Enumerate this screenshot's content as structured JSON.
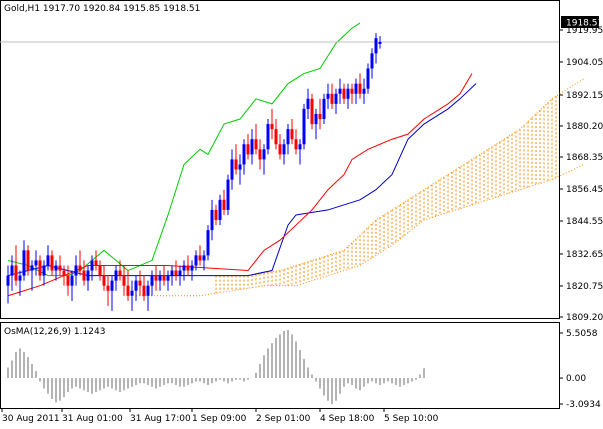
{
  "colors": {
    "background": "#ffffff",
    "frame": "#000000",
    "bull_candle": "#0000ff",
    "bear_candle": "#ff0000",
    "tenkan": "#ff0000",
    "kijun": "#0000cc",
    "chikou": "#00cc00",
    "kumo": "#ff8c00",
    "osma": "#b4b4b4",
    "bid_line": "#c0c0c0"
  },
  "main_panel": {
    "title": "Gold,H1  1917.70 1920.84 1915.85 1918.51",
    "current_price_label": "1918.51",
    "current_price": 1918.51,
    "price_ticks": [
      "1919.95",
      "1904.05",
      "1892.15",
      "1880.20",
      "1868.35",
      "1856.45",
      "1844.55",
      "1832.65",
      "1820.75",
      "1809.20"
    ]
  },
  "osma_panel": {
    "title": "OsMA(12,26,9) 1.1243",
    "ticks": [
      "5.5058",
      "0.00",
      "-3.0934"
    ]
  },
  "time_axis": {
    "labels": [
      "30 Aug 2011",
      "31 Aug 01:00",
      "31 Aug 17:00",
      "1 Sep 09:00",
      "2 Sep 01:00",
      "4 Sep 18:00",
      "5 Sep 10:00"
    ]
  },
  "chart_data": {
    "type": "candlestick",
    "instrument": "Gold",
    "timeframe": "H1",
    "price_ylim": [
      1809.2,
      1928.0
    ],
    "bar_spacing": 4,
    "last_bar": {
      "open": 1917.7,
      "high": 1920.84,
      "low": 1915.85,
      "close": 1918.51
    },
    "indicators": [
      "Ichimoku Kinko Hyo",
      "OsMA(12,26,9)"
    ],
    "tenkan_sen": [
      [
        0,
        1818
      ],
      [
        8,
        1822
      ],
      [
        20,
        1830
      ],
      [
        40,
        1830
      ],
      [
        60,
        1828
      ],
      [
        64,
        1836
      ],
      [
        68,
        1840
      ],
      [
        72,
        1846
      ],
      [
        76,
        1852
      ],
      [
        80,
        1860
      ],
      [
        84,
        1866
      ],
      [
        86,
        1872
      ],
      [
        90,
        1876
      ],
      [
        96,
        1880
      ],
      [
        100,
        1882
      ],
      [
        104,
        1888
      ],
      [
        108,
        1892
      ],
      [
        110,
        1894
      ],
      [
        113,
        1898
      ],
      [
        116,
        1906
      ]
    ],
    "kijun_sen": [
      [
        0,
        1826
      ],
      [
        10,
        1830
      ],
      [
        20,
        1826
      ],
      [
        40,
        1826
      ],
      [
        60,
        1826
      ],
      [
        66,
        1828
      ],
      [
        70,
        1846
      ],
      [
        72,
        1850
      ],
      [
        80,
        1852
      ],
      [
        88,
        1856
      ],
      [
        92,
        1860
      ],
      [
        96,
        1866
      ],
      [
        100,
        1880
      ],
      [
        104,
        1886
      ],
      [
        110,
        1892
      ],
      [
        113,
        1896
      ],
      [
        117,
        1902
      ]
    ],
    "chikou_span": [
      [
        0,
        1832
      ],
      [
        5,
        1830
      ],
      [
        10,
        1826
      ],
      [
        15,
        1826
      ],
      [
        18,
        1828
      ],
      [
        24,
        1836
      ],
      [
        30,
        1828
      ],
      [
        36,
        1832
      ],
      [
        40,
        1850
      ],
      [
        44,
        1870
      ],
      [
        48,
        1876
      ],
      [
        50,
        1874
      ],
      [
        54,
        1886
      ],
      [
        58,
        1888
      ],
      [
        62,
        1896
      ],
      [
        66,
        1894
      ],
      [
        70,
        1902
      ],
      [
        74,
        1906
      ],
      [
        78,
        1908
      ],
      [
        82,
        1918
      ],
      [
        86,
        1924
      ],
      [
        88,
        1926
      ]
    ],
    "senkou_span_a": [
      [
        52,
        1826
      ],
      [
        60,
        1826
      ],
      [
        68,
        1828
      ],
      [
        76,
        1832
      ],
      [
        84,
        1836
      ],
      [
        92,
        1848
      ],
      [
        100,
        1856
      ],
      [
        106,
        1862
      ],
      [
        112,
        1868
      ],
      [
        120,
        1876
      ],
      [
        128,
        1884
      ],
      [
        136,
        1896
      ],
      [
        144,
        1904
      ]
    ],
    "senkou_span_b": [
      [
        32,
        1818
      ],
      [
        40,
        1818
      ],
      [
        48,
        1818
      ],
      [
        56,
        1820
      ],
      [
        64,
        1822
      ],
      [
        72,
        1822
      ],
      [
        80,
        1826
      ],
      [
        88,
        1830
      ],
      [
        96,
        1838
      ],
      [
        104,
        1848
      ],
      [
        112,
        1852
      ],
      [
        120,
        1856
      ],
      [
        128,
        1860
      ],
      [
        136,
        1864
      ],
      [
        144,
        1870
      ]
    ],
    "candles": [
      [
        1822,
        1830,
        1815,
        1826
      ],
      [
        1826,
        1834,
        1820,
        1830
      ],
      [
        1830,
        1838,
        1822,
        1824
      ],
      [
        1824,
        1828,
        1818,
        1826
      ],
      [
        1826,
        1840,
        1824,
        1836
      ],
      [
        1836,
        1838,
        1826,
        1828
      ],
      [
        1828,
        1832,
        1820,
        1830
      ],
      [
        1830,
        1836,
        1826,
        1832
      ],
      [
        1832,
        1834,
        1824,
        1826
      ],
      [
        1826,
        1832,
        1822,
        1830
      ],
      [
        1830,
        1838,
        1828,
        1834
      ],
      [
        1834,
        1836,
        1826,
        1828
      ],
      [
        1828,
        1832,
        1824,
        1830
      ],
      [
        1830,
        1834,
        1826,
        1828
      ],
      [
        1828,
        1830,
        1822,
        1826
      ],
      [
        1826,
        1830,
        1818,
        1822
      ],
      [
        1822,
        1828,
        1816,
        1826
      ],
      [
        1826,
        1834,
        1822,
        1830
      ],
      [
        1830,
        1836,
        1826,
        1828
      ],
      [
        1828,
        1832,
        1822,
        1824
      ],
      [
        1824,
        1830,
        1820,
        1828
      ],
      [
        1828,
        1834,
        1824,
        1832
      ],
      [
        1832,
        1836,
        1828,
        1830
      ],
      [
        1830,
        1832,
        1824,
        1826
      ],
      [
        1826,
        1830,
        1820,
        1822
      ],
      [
        1822,
        1826,
        1814,
        1820
      ],
      [
        1820,
        1826,
        1812,
        1824
      ],
      [
        1824,
        1830,
        1820,
        1828
      ],
      [
        1828,
        1832,
        1824,
        1826
      ],
      [
        1826,
        1830,
        1818,
        1822
      ],
      [
        1822,
        1828,
        1816,
        1818
      ],
      [
        1818,
        1824,
        1812,
        1820
      ],
      [
        1820,
        1826,
        1816,
        1824
      ],
      [
        1824,
        1828,
        1818,
        1822
      ],
      [
        1822,
        1826,
        1816,
        1818
      ],
      [
        1818,
        1824,
        1812,
        1822
      ],
      [
        1822,
        1828,
        1818,
        1826
      ],
      [
        1826,
        1830,
        1820,
        1824
      ],
      [
        1824,
        1828,
        1820,
        1826
      ],
      [
        1826,
        1830,
        1822,
        1824
      ],
      [
        1824,
        1828,
        1820,
        1826
      ],
      [
        1826,
        1830,
        1822,
        1828
      ],
      [
        1828,
        1832,
        1824,
        1826
      ],
      [
        1826,
        1830,
        1822,
        1828
      ],
      [
        1828,
        1832,
        1824,
        1830
      ],
      [
        1830,
        1834,
        1826,
        1828
      ],
      [
        1828,
        1832,
        1824,
        1830
      ],
      [
        1830,
        1836,
        1828,
        1834
      ],
      [
        1834,
        1838,
        1830,
        1832
      ],
      [
        1832,
        1836,
        1828,
        1834
      ],
      [
        1834,
        1846,
        1832,
        1844
      ],
      [
        1844,
        1856,
        1840,
        1852
      ],
      [
        1852,
        1854,
        1846,
        1848
      ],
      [
        1848,
        1858,
        1846,
        1856
      ],
      [
        1856,
        1860,
        1850,
        1852
      ],
      [
        1852,
        1866,
        1850,
        1864
      ],
      [
        1864,
        1876,
        1860,
        1872
      ],
      [
        1872,
        1878,
        1866,
        1868
      ],
      [
        1868,
        1874,
        1862,
        1870
      ],
      [
        1870,
        1880,
        1866,
        1878
      ],
      [
        1878,
        1882,
        1872,
        1874
      ],
      [
        1874,
        1884,
        1870,
        1880
      ],
      [
        1880,
        1886,
        1874,
        1876
      ],
      [
        1876,
        1880,
        1868,
        1872
      ],
      [
        1872,
        1878,
        1866,
        1876
      ],
      [
        1876,
        1888,
        1874,
        1886
      ],
      [
        1886,
        1892,
        1880,
        1884
      ],
      [
        1884,
        1888,
        1876,
        1878
      ],
      [
        1878,
        1882,
        1872,
        1874
      ],
      [
        1874,
        1880,
        1870,
        1878
      ],
      [
        1878,
        1886,
        1874,
        1884
      ],
      [
        1884,
        1888,
        1878,
        1880
      ],
      [
        1880,
        1884,
        1874,
        1876
      ],
      [
        1876,
        1880,
        1870,
        1878
      ],
      [
        1878,
        1894,
        1876,
        1892
      ],
      [
        1892,
        1900,
        1888,
        1896
      ],
      [
        1896,
        1898,
        1884,
        1886
      ],
      [
        1886,
        1892,
        1880,
        1890
      ],
      [
        1890,
        1896,
        1884,
        1888
      ],
      [
        1888,
        1898,
        1886,
        1896
      ],
      [
        1896,
        1902,
        1892,
        1898
      ],
      [
        1898,
        1902,
        1892,
        1894
      ],
      [
        1894,
        1900,
        1890,
        1898
      ],
      [
        1898,
        1904,
        1894,
        1900
      ],
      [
        1900,
        1902,
        1894,
        1896
      ],
      [
        1896,
        1902,
        1892,
        1900
      ],
      [
        1900,
        1902,
        1894,
        1898
      ],
      [
        1898,
        1904,
        1894,
        1902
      ],
      [
        1902,
        1906,
        1896,
        1898
      ],
      [
        1898,
        1904,
        1894,
        1900
      ],
      [
        1900,
        1910,
        1898,
        1908
      ],
      [
        1908,
        1916,
        1904,
        1914
      ],
      [
        1914,
        1922,
        1910,
        1920
      ],
      [
        1917.7,
        1920.84,
        1915.85,
        1918.51
      ]
    ],
    "osma": [
      1.2,
      2.0,
      3.0,
      3.4,
      3.0,
      2.4,
      1.6,
      0.8,
      -0.4,
      -1.2,
      -1.8,
      -2.4,
      -2.8,
      -2.6,
      -2.2,
      -1.6,
      -1.2,
      -1.0,
      -1.2,
      -1.4,
      -1.6,
      -1.8,
      -1.6,
      -1.4,
      -1.2,
      -1.0,
      -1.2,
      -1.4,
      -1.6,
      -1.4,
      -1.2,
      -1.0,
      -0.8,
      -0.6,
      -0.6,
      -0.8,
      -1.0,
      -1.2,
      -1.0,
      -0.8,
      -0.6,
      -0.6,
      -0.8,
      -1.0,
      -1.0,
      -0.8,
      -0.6,
      -0.4,
      -0.4,
      -0.6,
      -0.8,
      -0.6,
      -0.4,
      -0.2,
      -0.4,
      -0.6,
      -0.4,
      -0.2,
      -0.2,
      -0.4,
      -0.2,
      0.0,
      0.6,
      1.6,
      2.6,
      3.4,
      4.0,
      4.6,
      5.0,
      5.4,
      5.5,
      5.0,
      4.2,
      3.2,
      2.2,
      1.2,
      0.4,
      -0.4,
      -1.2,
      -2.0,
      -2.6,
      -3.0,
      -2.6,
      -1.8,
      -1.0,
      -0.6,
      -0.8,
      -1.2,
      -1.4,
      -1.0,
      -0.6,
      -0.4,
      -0.6,
      -0.8,
      -0.6,
      -0.4,
      -0.6,
      -0.8,
      -1.0,
      -0.8,
      -0.6,
      -0.4,
      -0.2,
      0.4,
      1.1243
    ],
    "osma_ylim": [
      -3.0934,
      5.5058
    ]
  }
}
